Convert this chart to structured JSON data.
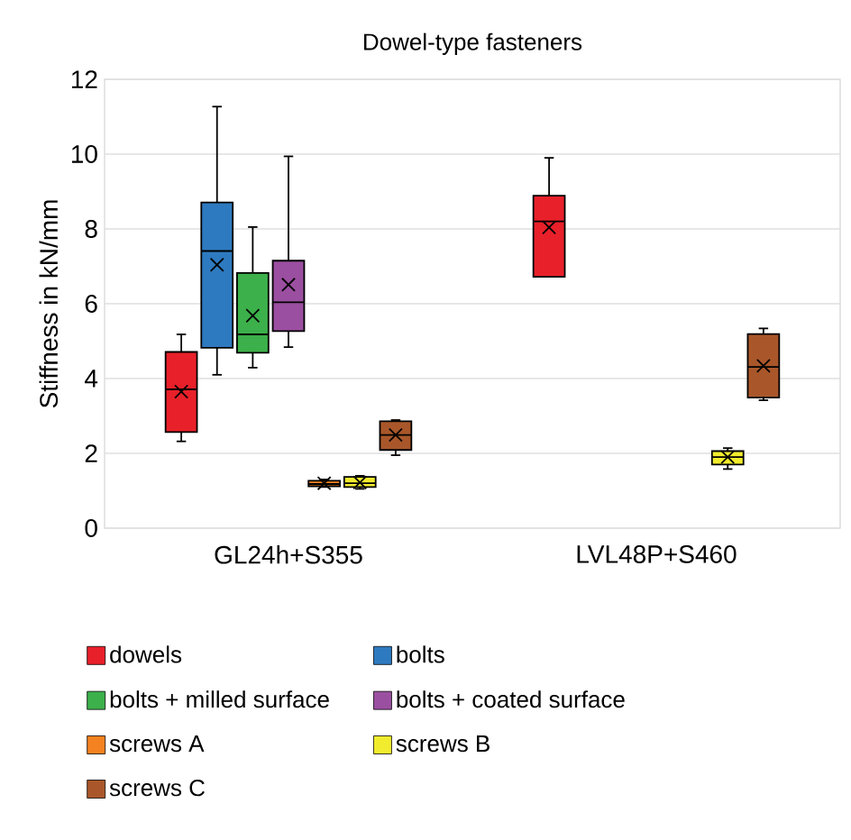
{
  "chart_data": {
    "type": "box",
    "title": "Dowel-type fasteners",
    "ylabel": "Stiffness in kN/mm",
    "categories": [
      "GL24h+S355",
      "LVL48P+S460"
    ],
    "ylim": [
      0,
      12
    ],
    "yticks": [
      0,
      2,
      4,
      6,
      8,
      10,
      12
    ],
    "grid": "y",
    "legend": "bottom",
    "series": [
      {
        "name": "dowels",
        "color": "#e8202a",
        "boxes": [
          {
            "low": 2.32,
            "q1": 2.57,
            "median": 3.71,
            "q3": 4.71,
            "high": 5.18,
            "mean": 3.65
          },
          {
            "low": 6.72,
            "q1": 6.72,
            "median": 8.2,
            "q3": 8.89,
            "high": 9.9,
            "mean": 8.04
          }
        ]
      },
      {
        "name": "bolts",
        "color": "#2e7ac0",
        "boxes": [
          {
            "low": 4.1,
            "q1": 4.82,
            "median": 7.41,
            "q3": 8.71,
            "high": 11.27,
            "mean": 7.04
          },
          null
        ]
      },
      {
        "name": "bolts + milled surface",
        "color": "#3cb04a",
        "boxes": [
          {
            "low": 4.29,
            "q1": 4.69,
            "median": 5.18,
            "q3": 6.82,
            "high": 8.05,
            "mean": 5.68
          },
          null
        ]
      },
      {
        "name": "bolts + coated surface",
        "color": "#9b4fa0",
        "boxes": [
          {
            "low": 4.84,
            "q1": 5.27,
            "median": 6.04,
            "q3": 7.15,
            "high": 9.94,
            "mean": 6.51
          },
          null
        ]
      },
      {
        "name": "screws A",
        "color": "#f58220",
        "boxes": [
          {
            "low": 1.1,
            "q1": 1.12,
            "median": 1.18,
            "q3": 1.27,
            "high": 1.3,
            "mean": 1.2
          },
          null
        ]
      },
      {
        "name": "screws B",
        "color": "#f2ec2e",
        "boxes": [
          {
            "low": 1.05,
            "q1": 1.1,
            "median": 1.2,
            "q3": 1.37,
            "high": 1.4,
            "mean": 1.22
          },
          {
            "low": 1.58,
            "q1": 1.7,
            "median": 1.9,
            "q3": 2.06,
            "high": 2.14,
            "mean": 1.9
          }
        ]
      },
      {
        "name": "screws C",
        "color": "#a9572a",
        "boxes": [
          {
            "low": 1.95,
            "q1": 2.09,
            "median": 2.49,
            "q3": 2.86,
            "high": 2.89,
            "mean": 2.49
          },
          {
            "low": 3.42,
            "q1": 3.49,
            "median": 4.31,
            "q3": 5.19,
            "high": 5.34,
            "mean": 4.34
          }
        ]
      }
    ]
  }
}
